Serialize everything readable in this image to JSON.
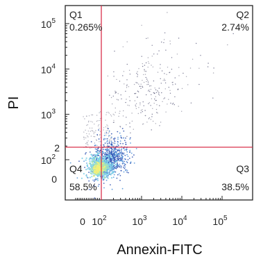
{
  "chart_data": {
    "type": "scatter",
    "xlabel": "Annexin-FITC",
    "ylabel": "PI",
    "x_scale": "biexponential",
    "y_scale": "biexponential",
    "x_ticks": [
      {
        "value": 0,
        "base": "0",
        "exp": ""
      },
      {
        "value": 100,
        "base": "10",
        "exp": "2"
      },
      {
        "value": 1000,
        "base": "10",
        "exp": "3"
      },
      {
        "value": 10000,
        "base": "10",
        "exp": "4"
      },
      {
        "value": 100000,
        "base": "10",
        "exp": "5"
      }
    ],
    "y_ticks": [
      {
        "value": 0,
        "base": "0",
        "exp": ""
      },
      {
        "value": 100,
        "base": "10",
        "exp": "2"
      },
      {
        "value": 1000,
        "base": "10",
        "exp": "3"
      },
      {
        "value": 10000,
        "base": "10",
        "exp": "4"
      },
      {
        "value": 100000,
        "base": "10",
        "exp": "5"
      }
    ],
    "y_gate_label": "2",
    "gates": {
      "x": 100,
      "y": 150
    },
    "quadrants": [
      {
        "name": "Q1",
        "percent": "0.265%",
        "position": "top-left"
      },
      {
        "name": "Q2",
        "percent": "2.74%",
        "position": "top-right"
      },
      {
        "name": "Q3",
        "percent": "38.5%",
        "position": "bottom-right"
      },
      {
        "name": "Q4",
        "percent": "58.5%",
        "position": "bottom-left"
      }
    ],
    "grid": false,
    "gate_color": "#d9304a",
    "density_colors": [
      "#f2f07a",
      "#aee6b0",
      "#7ed0e8",
      "#4a8fd8",
      "#2b4fb0",
      "#555577",
      "#8c8c9c"
    ]
  }
}
